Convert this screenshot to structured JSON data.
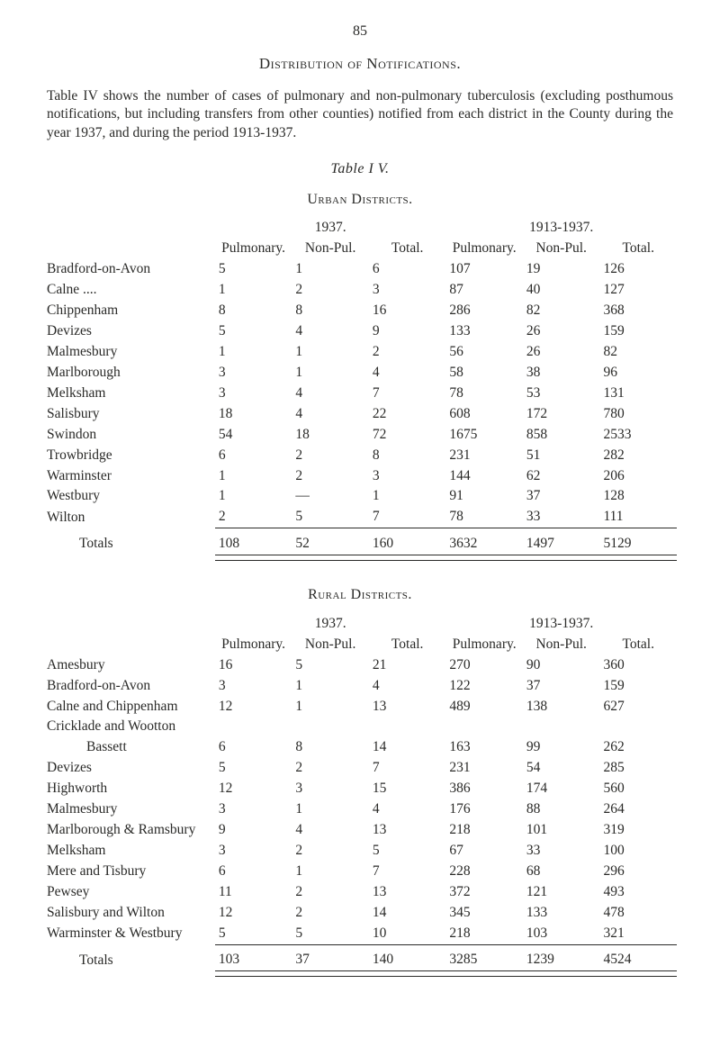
{
  "page_number": "85",
  "section_title": "Distribution of Notifications.",
  "intro_text": "Table IV shows the number of cases of pulmonary and non-pulmonary tuberculosis (excluding posthumous notifications, but including transfers from other counties) notified from each district in the County during the year 1937, and during the period 1913-1937.",
  "table_label": "Table  I V.",
  "urban": {
    "heading": "Urban Districts.",
    "year_left": "1937.",
    "year_right": "1913-1937.",
    "cols": {
      "pulmonary": "Pulmonary.",
      "nonpul": "Non-Pul.",
      "total": "Total."
    },
    "rows": [
      {
        "name": "Bradford-on-Avon",
        "p37": "5",
        "n37": "1",
        "t37": "6",
        "p13": "107",
        "n13": "19",
        "t13": "126"
      },
      {
        "name": "Calne  ....",
        "p37": "1",
        "n37": "2",
        "t37": "3",
        "p13": "87",
        "n13": "40",
        "t13": "127"
      },
      {
        "name": "Chippenham",
        "p37": "8",
        "n37": "8",
        "t37": "16",
        "p13": "286",
        "n13": "82",
        "t13": "368"
      },
      {
        "name": "Devizes",
        "p37": "5",
        "n37": "4",
        "t37": "9",
        "p13": "133",
        "n13": "26",
        "t13": "159"
      },
      {
        "name": "Malmesbury",
        "p37": "1",
        "n37": "1",
        "t37": "2",
        "p13": "56",
        "n13": "26",
        "t13": "82"
      },
      {
        "name": "Marlborough",
        "p37": "3",
        "n37": "1",
        "t37": "4",
        "p13": "58",
        "n13": "38",
        "t13": "96"
      },
      {
        "name": "Melksham",
        "p37": "3",
        "n37": "4",
        "t37": "7",
        "p13": "78",
        "n13": "53",
        "t13": "131"
      },
      {
        "name": "Salisbury",
        "p37": "18",
        "n37": "4",
        "t37": "22",
        "p13": "608",
        "n13": "172",
        "t13": "780"
      },
      {
        "name": "Swindon",
        "p37": "54",
        "n37": "18",
        "t37": "72",
        "p13": "1675",
        "n13": "858",
        "t13": "2533"
      },
      {
        "name": "Trowbridge",
        "p37": "6",
        "n37": "2",
        "t37": "8",
        "p13": "231",
        "n13": "51",
        "t13": "282"
      },
      {
        "name": "Warminster",
        "p37": "1",
        "n37": "2",
        "t37": "3",
        "p13": "144",
        "n13": "62",
        "t13": "206"
      },
      {
        "name": "Westbury",
        "p37": "1",
        "n37": "—",
        "t37": "1",
        "p13": "91",
        "n13": "37",
        "t13": "128"
      },
      {
        "name": "Wilton",
        "p37": "2",
        "n37": "5",
        "t37": "7",
        "p13": "78",
        "n13": "33",
        "t13": "111"
      }
    ],
    "totals_label": "Totals",
    "totals": {
      "p37": "108",
      "n37": "52",
      "t37": "160",
      "p13": "3632",
      "n13": "1497",
      "t13": "5129"
    }
  },
  "rural": {
    "heading": "Rural Districts.",
    "year_left": "1937.",
    "year_right": "1913-1937.",
    "cols": {
      "pulmonary": "Pulmonary.",
      "nonpul": "Non-Pul.",
      "total": "Total."
    },
    "rows": [
      {
        "name": "Amesbury",
        "p37": "16",
        "n37": "5",
        "t37": "21",
        "p13": "270",
        "n13": "90",
        "t13": "360"
      },
      {
        "name": "Bradford-on-Avon",
        "p37": "3",
        "n37": "1",
        "t37": "4",
        "p13": "122",
        "n13": "37",
        "t13": "159"
      },
      {
        "name": "Calne and Chippenham",
        "p37": "12",
        "n37": "1",
        "t37": "13",
        "p13": "489",
        "n13": "138",
        "t13": "627"
      },
      {
        "name": "Cricklade and Wootton",
        "p37": "",
        "n37": "",
        "t37": "",
        "p13": "",
        "n13": "",
        "t13": ""
      },
      {
        "name": "        Bassett",
        "p37": "6",
        "n37": "8",
        "t37": "14",
        "p13": "163",
        "n13": "99",
        "t13": "262",
        "indent": true
      },
      {
        "name": "Devizes",
        "p37": "5",
        "n37": "2",
        "t37": "7",
        "p13": "231",
        "n13": "54",
        "t13": "285"
      },
      {
        "name": "Highworth",
        "p37": "12",
        "n37": "3",
        "t37": "15",
        "p13": "386",
        "n13": "174",
        "t13": "560"
      },
      {
        "name": "Malmesbury",
        "p37": "3",
        "n37": "1",
        "t37": "4",
        "p13": "176",
        "n13": "88",
        "t13": "264"
      },
      {
        "name": "Marlborough & Ramsbury",
        "p37": "9",
        "n37": "4",
        "t37": "13",
        "p13": "218",
        "n13": "101",
        "t13": "319"
      },
      {
        "name": "Melksham",
        "p37": "3",
        "n37": "2",
        "t37": "5",
        "p13": "67",
        "n13": "33",
        "t13": "100"
      },
      {
        "name": "Mere and Tisbury",
        "p37": "6",
        "n37": "1",
        "t37": "7",
        "p13": "228",
        "n13": "68",
        "t13": "296"
      },
      {
        "name": "Pewsey",
        "p37": "11",
        "n37": "2",
        "t37": "13",
        "p13": "372",
        "n13": "121",
        "t13": "493"
      },
      {
        "name": "Salisbury and Wilton",
        "p37": "12",
        "n37": "2",
        "t37": "14",
        "p13": "345",
        "n13": "133",
        "t13": "478"
      },
      {
        "name": "Warminster & Westbury",
        "p37": "5",
        "n37": "5",
        "t37": "10",
        "p13": "218",
        "n13": "103",
        "t13": "321"
      }
    ],
    "totals_label": "Totals",
    "totals": {
      "p37": "103",
      "n37": "37",
      "t37": "140",
      "p13": "3285",
      "n13": "1239",
      "t13": "4524"
    }
  }
}
